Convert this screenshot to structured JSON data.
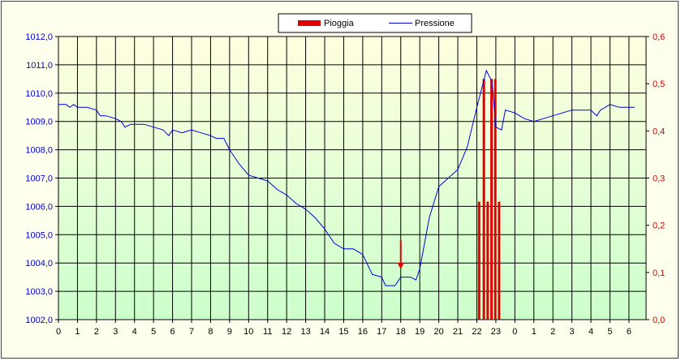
{
  "chart_data": {
    "type": "bar+line",
    "legend": {
      "placement": "top-center",
      "entries": [
        {
          "label": "Pioggia",
          "color": "#e00000",
          "kind": "bar"
        },
        {
          "label": "Pressione",
          "color": "#0000dd",
          "kind": "line"
        }
      ]
    },
    "x_ticks": [
      "0",
      "1",
      "2",
      "3",
      "4",
      "5",
      "6",
      "7",
      "8",
      "9",
      "10",
      "11",
      "12",
      "13",
      "14",
      "15",
      "16",
      "17",
      "18",
      "19",
      "20",
      "21",
      "22",
      "23",
      "0",
      "1",
      "2",
      "3",
      "4",
      "5",
      "6"
    ],
    "y_left": {
      "ylim": [
        1002.0,
        1012.0
      ],
      "ticks": [
        "1002,0",
        "1003,0",
        "1004,0",
        "1005,0",
        "1006,0",
        "1007,0",
        "1008,0",
        "1009,0",
        "1010,0",
        "1011,0",
        "1012,0"
      ],
      "color": "#0000cc"
    },
    "y_right": {
      "ylim": [
        0,
        0.6
      ],
      "ticks": [
        "0,0",
        "0,1",
        "0,2",
        "0,3",
        "0,4",
        "0,5",
        "0,6"
      ],
      "color": "#cc0000"
    },
    "grid": true,
    "background_gradient": [
      "#ffffe0",
      "#ccffcc"
    ],
    "series": [
      {
        "name": "Pressione",
        "axis": "left",
        "color": "#0000dd",
        "points": [
          [
            0,
            1009.6
          ],
          [
            0.4,
            1009.6
          ],
          [
            0.6,
            1009.5
          ],
          [
            0.8,
            1009.6
          ],
          [
            1,
            1009.5
          ],
          [
            1.5,
            1009.5
          ],
          [
            2,
            1009.4
          ],
          [
            2.2,
            1009.2
          ],
          [
            2.5,
            1009.2
          ],
          [
            3,
            1009.1
          ],
          [
            3.3,
            1009.0
          ],
          [
            3.5,
            1008.8
          ],
          [
            3.8,
            1008.9
          ],
          [
            4,
            1008.9
          ],
          [
            4.5,
            1008.9
          ],
          [
            5,
            1008.8
          ],
          [
            5.5,
            1008.7
          ],
          [
            5.8,
            1008.5
          ],
          [
            6,
            1008.7
          ],
          [
            6.5,
            1008.6
          ],
          [
            7,
            1008.7
          ],
          [
            7.5,
            1008.6
          ],
          [
            8,
            1008.5
          ],
          [
            8.3,
            1008.4
          ],
          [
            8.7,
            1008.4
          ],
          [
            9,
            1008.0
          ],
          [
            9.5,
            1007.5
          ],
          [
            10,
            1007.1
          ],
          [
            10.5,
            1007.0
          ],
          [
            11,
            1006.9
          ],
          [
            11.5,
            1006.6
          ],
          [
            12,
            1006.4
          ],
          [
            12.5,
            1006.1
          ],
          [
            13,
            1005.9
          ],
          [
            13.5,
            1005.6
          ],
          [
            14,
            1005.2
          ],
          [
            14.5,
            1004.7
          ],
          [
            15,
            1004.5
          ],
          [
            15.5,
            1004.5
          ],
          [
            16,
            1004.3
          ],
          [
            16.5,
            1003.6
          ],
          [
            17,
            1003.5
          ],
          [
            17.2,
            1003.2
          ],
          [
            17.7,
            1003.2
          ],
          [
            18,
            1003.5
          ],
          [
            18.5,
            1003.5
          ],
          [
            18.8,
            1003.4
          ],
          [
            19,
            1003.8
          ],
          [
            19.5,
            1005.6
          ],
          [
            20,
            1006.7
          ],
          [
            20.5,
            1007.0
          ],
          [
            21,
            1007.3
          ],
          [
            21.5,
            1008.1
          ],
          [
            22,
            1009.5
          ],
          [
            22.5,
            1010.8
          ],
          [
            22.8,
            1010.4
          ],
          [
            23,
            1008.8
          ],
          [
            23.3,
            1008.7
          ],
          [
            23.5,
            1009.4
          ],
          [
            24,
            1009.3
          ],
          [
            24.5,
            1009.1
          ],
          [
            25,
            1009.0
          ],
          [
            25.5,
            1009.1
          ],
          [
            26,
            1009.2
          ],
          [
            26.5,
            1009.3
          ],
          [
            27,
            1009.4
          ],
          [
            27.5,
            1009.4
          ],
          [
            28,
            1009.4
          ],
          [
            28.3,
            1009.2
          ],
          [
            28.5,
            1009.4
          ],
          [
            29,
            1009.6
          ],
          [
            29.5,
            1009.5
          ],
          [
            30,
            1009.5
          ],
          [
            30.3,
            1009.5
          ]
        ]
      },
      {
        "name": "Pioggia",
        "axis": "right",
        "color": "#e00000",
        "bars": [
          [
            22.1,
            0.25
          ],
          [
            22.35,
            0.51
          ],
          [
            22.55,
            0.25
          ],
          [
            22.75,
            0.51
          ],
          [
            22.95,
            0.51
          ],
          [
            23.15,
            0.25
          ]
        ]
      }
    ],
    "annotations": [
      {
        "type": "arrow",
        "x": 18,
        "y_from": 1004.8,
        "y_to": 1003.8,
        "color": "#e00000"
      }
    ]
  }
}
